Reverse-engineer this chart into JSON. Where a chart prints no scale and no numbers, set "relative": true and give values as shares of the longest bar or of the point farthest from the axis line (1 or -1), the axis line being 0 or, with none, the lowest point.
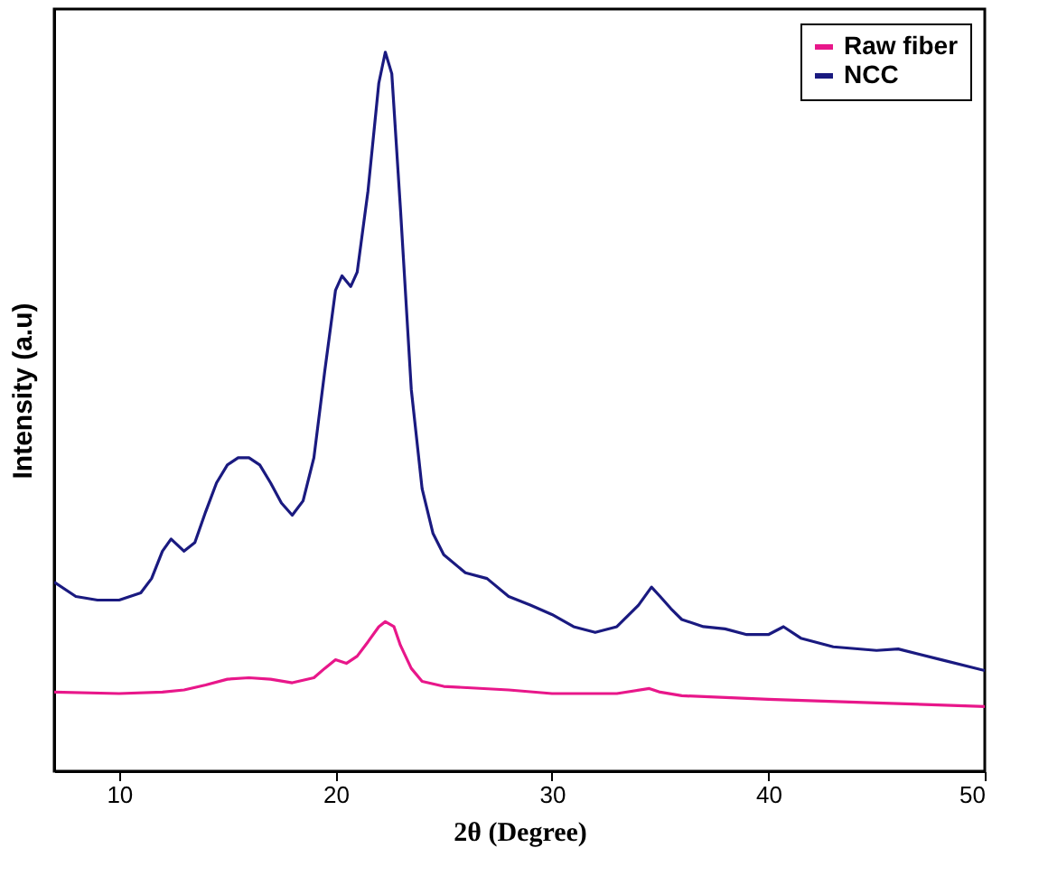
{
  "chart_data": {
    "type": "line",
    "xlabel": "2θ (Degree)",
    "ylabel": "Intensity (a.u)",
    "relative": true,
    "xlim": [
      7,
      50
    ],
    "xticks": [
      10,
      20,
      30,
      40,
      50
    ],
    "grid": false,
    "legend": "top right",
    "marker": "none",
    "line_style": "solid",
    "series": [
      {
        "name": "Raw fiber",
        "color": "#e8178a",
        "x": [
          7,
          10,
          12,
          13,
          14,
          15,
          16,
          17,
          18,
          19,
          19.5,
          20,
          20.5,
          21,
          21.5,
          22,
          22.3,
          22.7,
          23,
          23.5,
          24,
          25,
          28,
          30,
          33,
          34.5,
          35,
          36,
          40,
          45,
          50
        ],
        "values": [
          0.11,
          0.108,
          0.11,
          0.113,
          0.12,
          0.128,
          0.13,
          0.128,
          0.123,
          0.13,
          0.143,
          0.155,
          0.15,
          0.16,
          0.18,
          0.201,
          0.208,
          0.201,
          0.175,
          0.143,
          0.125,
          0.118,
          0.113,
          0.108,
          0.108,
          0.115,
          0.11,
          0.105,
          0.1,
          0.095,
          0.09
        ]
      },
      {
        "name": "NCC",
        "color": "#1a1a80",
        "x": [
          7,
          8,
          9,
          10,
          11,
          11.5,
          12,
          12.4,
          13,
          13.5,
          14,
          14.5,
          15,
          15.5,
          16,
          16.5,
          17,
          17.5,
          18,
          18.5,
          19,
          19.5,
          20,
          20.3,
          20.7,
          21,
          21.5,
          22,
          22.3,
          22.6,
          23,
          23.5,
          24,
          24.5,
          25,
          26,
          27,
          28,
          29,
          30,
          31,
          32,
          33,
          34,
          34.6,
          35,
          35.5,
          36,
          37,
          38,
          39,
          40,
          40.7,
          41.5,
          43,
          45,
          46,
          48,
          50
        ],
        "values": [
          0.263,
          0.243,
          0.238,
          0.238,
          0.248,
          0.268,
          0.306,
          0.323,
          0.306,
          0.318,
          0.361,
          0.401,
          0.426,
          0.436,
          0.436,
          0.426,
          0.401,
          0.373,
          0.356,
          0.376,
          0.436,
          0.556,
          0.669,
          0.689,
          0.674,
          0.694,
          0.807,
          0.957,
          1,
          0.97,
          0.782,
          0.531,
          0.393,
          0.331,
          0.301,
          0.276,
          0.268,
          0.243,
          0.231,
          0.218,
          0.201,
          0.193,
          0.201,
          0.231,
          0.256,
          0.243,
          0.226,
          0.211,
          0.201,
          0.198,
          0.19,
          0.19,
          0.201,
          0.185,
          0.173,
          0.168,
          0.17,
          0.155,
          0.14
        ]
      }
    ]
  }
}
